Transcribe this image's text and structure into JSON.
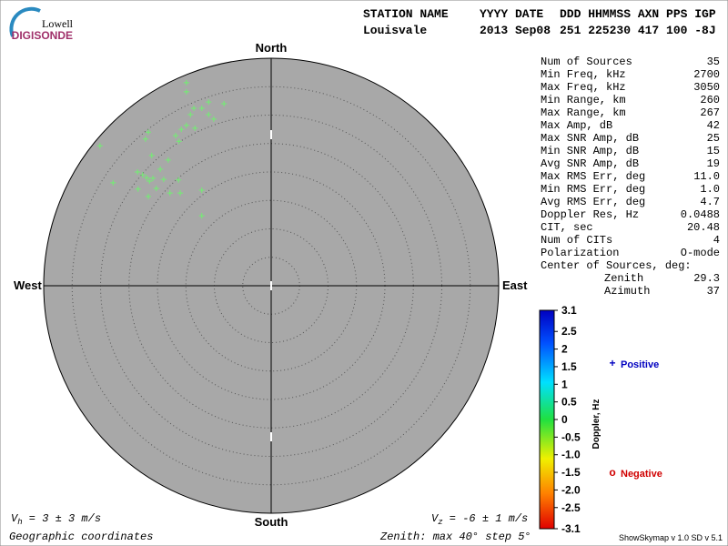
{
  "logo": {
    "top": "Lowell",
    "bottom": "DIGISONDE"
  },
  "header": {
    "rows": [
      [
        "STATION NAME",
        "YYYY DATE",
        "DDD HHMMSS AXN PPS IGP"
      ],
      [
        "Louisvale",
        "2013 Sep08",
        "251 225230 417 100 -8J"
      ]
    ]
  },
  "stats": {
    "rows": [
      [
        "Num of Sources",
        "35"
      ],
      [
        "Min Freq, kHz",
        "2700"
      ],
      [
        "Max Freq, kHz",
        "3050"
      ],
      [
        "Min Range, km",
        "260"
      ],
      [
        "Max Range, km",
        "267"
      ],
      [
        "Max Amp, dB",
        "42"
      ],
      [
        "Max SNR Amp, dB",
        "25"
      ],
      [
        "Min SNR Amp, dB",
        "15"
      ],
      [
        "Avg SNR Amp, dB",
        "19"
      ],
      [
        "Max RMS Err, deg",
        "11.0"
      ],
      [
        "Min RMS Err, deg",
        "1.0"
      ],
      [
        "Avg RMS Err, deg",
        "4.7"
      ],
      [
        "Doppler Res, Hz",
        "0.0488"
      ],
      [
        "CIT, sec",
        "20.48"
      ],
      [
        "Num of CITs",
        "4"
      ],
      [
        "Polarization",
        "O-mode"
      ]
    ],
    "center_title": "Center of Sources, deg:",
    "center_rows": [
      [
        "Zenith",
        "29.3"
      ],
      [
        "Azimuth",
        "37"
      ]
    ]
  },
  "chart_data": {
    "type": "skymap",
    "directions": {
      "north": "North",
      "east": "East",
      "south": "South",
      "west": "West"
    },
    "rlim": [
      0,
      40
    ],
    "rticks": [
      5,
      10,
      15,
      20,
      25,
      30,
      35
    ],
    "series": [
      {
        "name": "Positive",
        "symbol": "+",
        "color": "#0000c0",
        "point_color": "#70f070",
        "x": [
          -14.9,
          -14.9,
          -11.0,
          -8.3,
          -13.6,
          -12.2,
          -14.2,
          -11.0,
          -10.1,
          -14.9,
          -13.4,
          -15.8,
          -21.6,
          -22.1,
          -16.8,
          -16.2,
          -30.1,
          -21.0,
          -18.1,
          -19.5,
          -23.5,
          -22.6,
          -20.8,
          -21.9,
          -27.8,
          -18.9,
          -21.4,
          -16.3,
          -23.4,
          -20.2,
          -12.2,
          -17.8,
          -16.0,
          -21.6,
          -12.2
        ],
        "y": [
          35.7,
          34.1,
          32.3,
          32.0,
          31.2,
          31.2,
          30.1,
          30.1,
          29.3,
          28.2,
          27.7,
          27.5,
          27.0,
          25.8,
          26.4,
          25.4,
          24.6,
          22.9,
          22.1,
          20.5,
          20.0,
          19.5,
          18.9,
          19.0,
          18.1,
          18.7,
          18.4,
          18.6,
          17.0,
          17.1,
          16.8,
          16.3,
          16.3,
          15.7,
          12.3
        ]
      },
      {
        "name": "Negative",
        "symbol": "o",
        "color": "#d00000",
        "x": [],
        "y": []
      }
    ],
    "colorbar": {
      "label": "Doppler, Hz",
      "lim": [
        -3.1,
        3.1
      ],
      "ticks": [
        3.1,
        2.5,
        2,
        1.5,
        1,
        0.5,
        0,
        -0.5,
        {
          "value": -1,
          "label": "-1.0"
        },
        {
          "value": -1.5,
          "label": "-1.5"
        },
        {
          "value": -2,
          "label": "-2.0"
        },
        -2.5,
        -3.1
      ]
    },
    "footer": {
      "vh": [
        "V",
        "h",
        " = 3 ± 3 m/s"
      ],
      "vz": [
        "V",
        "z",
        " = -6 ± 1 m/s"
      ],
      "left": "Geographic coordinates",
      "right": "Zenith: max 40°  step 5°",
      "version": "ShowSkymap v 1.0  SD v 5.1"
    }
  }
}
